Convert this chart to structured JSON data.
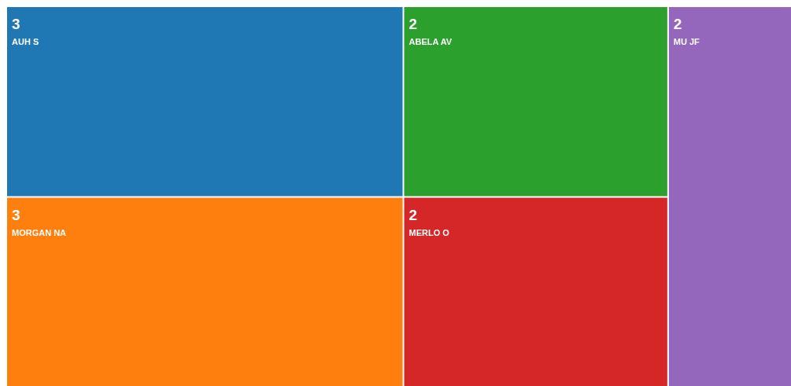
{
  "chart_data": {
    "type": "other",
    "categories": [
      "AUH S",
      "MORGAN NA",
      "ABELA AV",
      "MERLO O",
      "MU JF"
    ],
    "values": [
      3,
      3,
      2,
      2,
      2
    ],
    "colors": [
      "#1f77b4",
      "#ff7f0e",
      "#2ca02c",
      "#d62728",
      "#9467bd"
    ],
    "data_labels": true
  }
}
